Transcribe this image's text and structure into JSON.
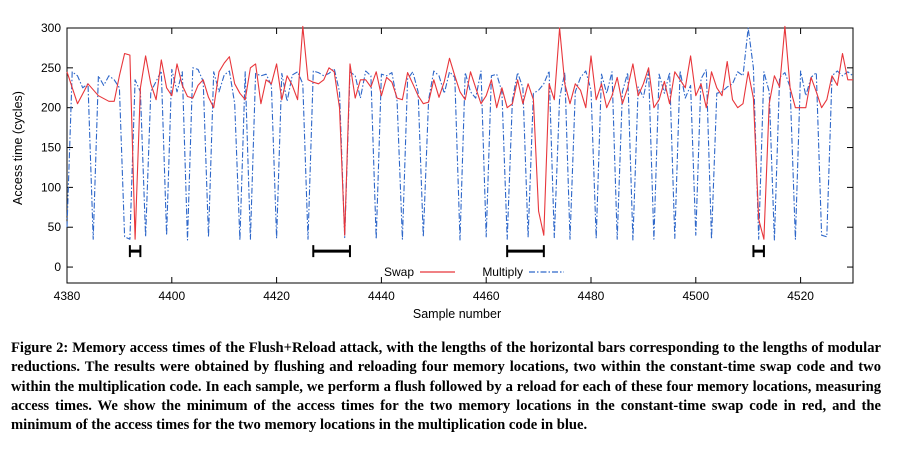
{
  "chart_data": {
    "type": "line",
    "xlabel": "Sample number",
    "ylabel": "Access time (cycles)",
    "xlim": [
      4380,
      4530
    ],
    "ylim": [
      -20,
      300
    ],
    "xticks": [
      4380,
      4400,
      4420,
      4440,
      4460,
      4480,
      4500,
      4520
    ],
    "yticks": [
      0,
      50,
      100,
      150,
      200,
      250,
      300
    ],
    "grid": false,
    "legend_position": "bottom-right",
    "series": [
      {
        "name": "Swap",
        "color": "#e8363b",
        "style": "solid",
        "x": [
          4380,
          4382,
          4384,
          4386,
          4388,
          4389,
          4390,
          4391,
          4392,
          4393,
          4394,
          4395,
          4396,
          4397,
          4398,
          4399,
          4400,
          4401,
          4402,
          4403,
          4404,
          4405,
          4406,
          4407,
          4408,
          4409,
          4410,
          4411,
          4412,
          4413,
          4414,
          4415,
          4416,
          4417,
          4418,
          4419,
          4420,
          4421,
          4422,
          4423,
          4424,
          4425,
          4426,
          4427,
          4428,
          4429,
          4430,
          4431,
          4432,
          4433,
          4434,
          4435,
          4436,
          4437,
          4438,
          4439,
          4440,
          4441,
          4442,
          4443,
          4444,
          4445,
          4446,
          4447,
          4448,
          4449,
          4450,
          4451,
          4452,
          4453,
          4454,
          4455,
          4456,
          4457,
          4458,
          4459,
          4460,
          4461,
          4462,
          4463,
          4464,
          4465,
          4466,
          4467,
          4468,
          4469,
          4470,
          4471,
          4472,
          4473,
          4474,
          4475,
          4476,
          4477,
          4478,
          4479,
          4480,
          4481,
          4482,
          4483,
          4484,
          4485,
          4486,
          4487,
          4488,
          4489,
          4490,
          4491,
          4492,
          4493,
          4494,
          4495,
          4496,
          4497,
          4498,
          4499,
          4500,
          4501,
          4502,
          4503,
          4504,
          4505,
          4506,
          4507,
          4508,
          4509,
          4510,
          4511,
          4512,
          4513,
          4514,
          4515,
          4516,
          4517,
          4518,
          4519,
          4520,
          4521,
          4522,
          4523,
          4524,
          4525,
          4526,
          4527,
          4528,
          4529,
          4530
        ],
        "values": [
          245,
          205,
          230,
          215,
          208,
          208,
          240,
          268,
          266,
          35,
          225,
          265,
          230,
          210,
          260,
          225,
          215,
          255,
          228,
          214,
          212,
          228,
          235,
          213,
          200,
          245,
          256,
          264,
          230,
          218,
          210,
          250,
          255,
          205,
          235,
          230,
          255,
          210,
          240,
          228,
          210,
          302,
          235,
          232,
          230,
          235,
          250,
          245,
          200,
          40,
          255,
          212,
          235,
          235,
          226,
          245,
          215,
          238,
          232,
          212,
          210,
          244,
          230,
          215,
          205,
          207,
          235,
          213,
          233,
          262,
          240,
          220,
          210,
          245,
          225,
          205,
          215,
          235,
          200,
          225,
          200,
          205,
          235,
          205,
          230,
          210,
          70,
          40,
          230,
          210,
          300,
          230,
          205,
          230,
          222,
          200,
          265,
          210,
          230,
          200,
          215,
          238,
          205,
          225,
          255,
          215,
          230,
          250,
          200,
          210,
          233,
          205,
          245,
          235,
          225,
          265,
          215,
          230,
          200,
          245,
          225,
          215,
          258,
          210,
          200,
          205,
          245,
          212,
          60,
          35,
          205,
          240,
          226,
          302,
          225,
          200,
          200,
          200,
          238,
          220,
          200,
          210,
          240,
          228,
          268,
          235,
          235
        ]
      },
      {
        "name": "Multiply",
        "color": "#2e67c9",
        "style": "dash-dot",
        "x": [
          4380,
          4381,
          4382,
          4383,
          4384,
          4385,
          4386,
          4387,
          4388,
          4389,
          4390,
          4391,
          4392,
          4393,
          4394,
          4395,
          4396,
          4397,
          4398,
          4399,
          4400,
          4401,
          4402,
          4403,
          4404,
          4405,
          4406,
          4407,
          4408,
          4409,
          4410,
          4411,
          4412,
          4413,
          4414,
          4415,
          4416,
          4417,
          4418,
          4419,
          4420,
          4421,
          4422,
          4423,
          4424,
          4425,
          4426,
          4427,
          4428,
          4429,
          4430,
          4431,
          4432,
          4433,
          4434,
          4435,
          4436,
          4437,
          4438,
          4439,
          4440,
          4441,
          4442,
          4443,
          4444,
          4445,
          4446,
          4447,
          4448,
          4449,
          4450,
          4451,
          4452,
          4453,
          4454,
          4455,
          4456,
          4457,
          4458,
          4459,
          4460,
          4461,
          4462,
          4463,
          4464,
          4465,
          4466,
          4467,
          4468,
          4469,
          4470,
          4471,
          4472,
          4473,
          4474,
          4475,
          4476,
          4477,
          4478,
          4479,
          4480,
          4481,
          4482,
          4483,
          4484,
          4485,
          4486,
          4487,
          4488,
          4489,
          4490,
          4491,
          4492,
          4493,
          4494,
          4495,
          4496,
          4497,
          4498,
          4499,
          4500,
          4501,
          4502,
          4503,
          4504,
          4505,
          4506,
          4507,
          4508,
          4509,
          4510,
          4511,
          4512,
          4513,
          4514,
          4515,
          4516,
          4517,
          4518,
          4519,
          4520,
          4521,
          4522,
          4523,
          4524,
          4525,
          4526,
          4527,
          4528,
          4529,
          4530
        ],
        "values": [
          50,
          245,
          240,
          225,
          230,
          35,
          240,
          228,
          240,
          235,
          225,
          38,
          35,
          235,
          220,
          38,
          220,
          233,
          246,
          40,
          248,
          220,
          245,
          34,
          250,
          248,
          233,
          38,
          245,
          220,
          241,
          246,
          205,
          34,
          245,
          35,
          243,
          240,
          242,
          228,
          36,
          243,
          208,
          241,
          245,
          230,
          35,
          246,
          244,
          240,
          243,
          249,
          220,
          37,
          245,
          240,
          212,
          246,
          240,
          35,
          242,
          240,
          244,
          208,
          35,
          236,
          245,
          220,
          38,
          210,
          246,
          240,
          218,
          245,
          238,
          34,
          244,
          220,
          212,
          246,
          38,
          240,
          242,
          220,
          35,
          210,
          244,
          225,
          38,
          218,
          222,
          230,
          246,
          37,
          212,
          244,
          35,
          220,
          238,
          246,
          222,
          36,
          242,
          218,
          245,
          35,
          220,
          244,
          34,
          226,
          213,
          246,
          35,
          242,
          218,
          244,
          36,
          246,
          212,
          228,
          40,
          236,
          248,
          35,
          218,
          220,
          226,
          230,
          245,
          240,
          300,
          250,
          35,
          245,
          220,
          34,
          238,
          244,
          226,
          35,
          246,
          215,
          238,
          244,
          40,
          38,
          240,
          246,
          240,
          245,
          240
        ]
      }
    ],
    "annotations": [
      {
        "type": "interval-bar",
        "x_start": 4392,
        "x_end": 4394,
        "y": 20
      },
      {
        "type": "interval-bar",
        "x_start": 4427,
        "x_end": 4434,
        "y": 20
      },
      {
        "type": "interval-bar",
        "x_start": 4464,
        "x_end": 4471,
        "y": 20
      },
      {
        "type": "interval-bar",
        "x_start": 4511,
        "x_end": 4513,
        "y": 20
      }
    ]
  },
  "caption": "Figure 2: Memory access times of the Flush+Reload attack, with the lengths of the horizontal bars corresponding to the lengths of modular reductions. The results were obtained by flushing and reloading four memory locations, two within the constant-time swap code and two within the multiplication code. In each sample, we perform a flush followed by a reload for each of these four memory locations, measuring access times. We show the minimum of the access times for the two memory locations in the constant-time swap code in red, and the minimum of the access times for the two memory locations in the multiplication code in blue."
}
